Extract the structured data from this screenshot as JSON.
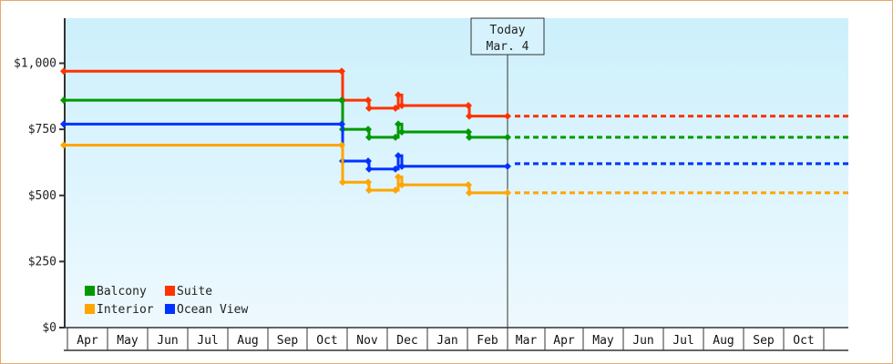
{
  "chart_data": {
    "type": "line",
    "title": "",
    "xlabel": "",
    "ylabel": "",
    "ylim": [
      0,
      1150
    ],
    "y_ticks": [
      "$0",
      "$250",
      "$500",
      "$750",
      "$1,000"
    ],
    "y_tick_values": [
      0,
      250,
      500,
      750,
      1000
    ],
    "x_ticks": [
      "Apr",
      "May",
      "Jun",
      "Jul",
      "Aug",
      "Sep",
      "Oct",
      "Nov",
      "Dec",
      "Jan",
      "Feb",
      "Mar",
      "Apr",
      "May",
      "Jun",
      "Jul",
      "Aug",
      "Sep",
      "Oct"
    ],
    "annotation": {
      "line1": "Today",
      "line2": "Mar. 4"
    },
    "legend": [
      {
        "name": "Balcony",
        "color": "#009900"
      },
      {
        "name": "Suite",
        "color": "#ff3300"
      },
      {
        "name": "Interior",
        "color": "#ffa500"
      },
      {
        "name": "Ocean View",
        "color": "#0033ff"
      }
    ],
    "series": [
      {
        "name": "Suite",
        "color": "#ff3300",
        "points": [
          [
            "Apr",
            970
          ],
          [
            "Oct",
            970
          ],
          [
            "Oct",
            860
          ],
          [
            "Nov",
            860
          ],
          [
            "Nov",
            830
          ],
          [
            "Dec",
            830
          ],
          [
            "Dec",
            880
          ],
          [
            "Dec",
            840
          ],
          [
            "Feb",
            840
          ],
          [
            "Feb",
            800
          ],
          [
            "Mar 4",
            800
          ]
        ],
        "forecast": 800
      },
      {
        "name": "Balcony",
        "color": "#009900",
        "points": [
          [
            "Apr",
            860
          ],
          [
            "Oct",
            860
          ],
          [
            "Oct",
            750
          ],
          [
            "Nov",
            750
          ],
          [
            "Nov",
            720
          ],
          [
            "Dec",
            720
          ],
          [
            "Dec",
            770
          ],
          [
            "Dec",
            740
          ],
          [
            "Feb",
            740
          ],
          [
            "Feb",
            720
          ],
          [
            "Mar 4",
            720
          ]
        ],
        "forecast": 720
      },
      {
        "name": "Ocean View",
        "color": "#0033ff",
        "points": [
          [
            "Apr",
            770
          ],
          [
            "Oct",
            770
          ],
          [
            "Oct",
            630
          ],
          [
            "Nov",
            630
          ],
          [
            "Nov",
            600
          ],
          [
            "Dec",
            600
          ],
          [
            "Dec",
            650
          ],
          [
            "Dec",
            610
          ],
          [
            "Mar 4",
            610
          ]
        ],
        "forecast": 620
      },
      {
        "name": "Interior",
        "color": "#ffa500",
        "points": [
          [
            "Apr",
            690
          ],
          [
            "Oct",
            690
          ],
          [
            "Oct",
            550
          ],
          [
            "Nov",
            550
          ],
          [
            "Nov",
            520
          ],
          [
            "Dec",
            520
          ],
          [
            "Dec",
            570
          ],
          [
            "Dec",
            540
          ],
          [
            "Feb",
            540
          ],
          [
            "Feb",
            510
          ],
          [
            "Mar 4",
            510
          ]
        ],
        "forecast": 510
      }
    ],
    "grid": false,
    "legend_position": "bottom-left inside plot"
  }
}
